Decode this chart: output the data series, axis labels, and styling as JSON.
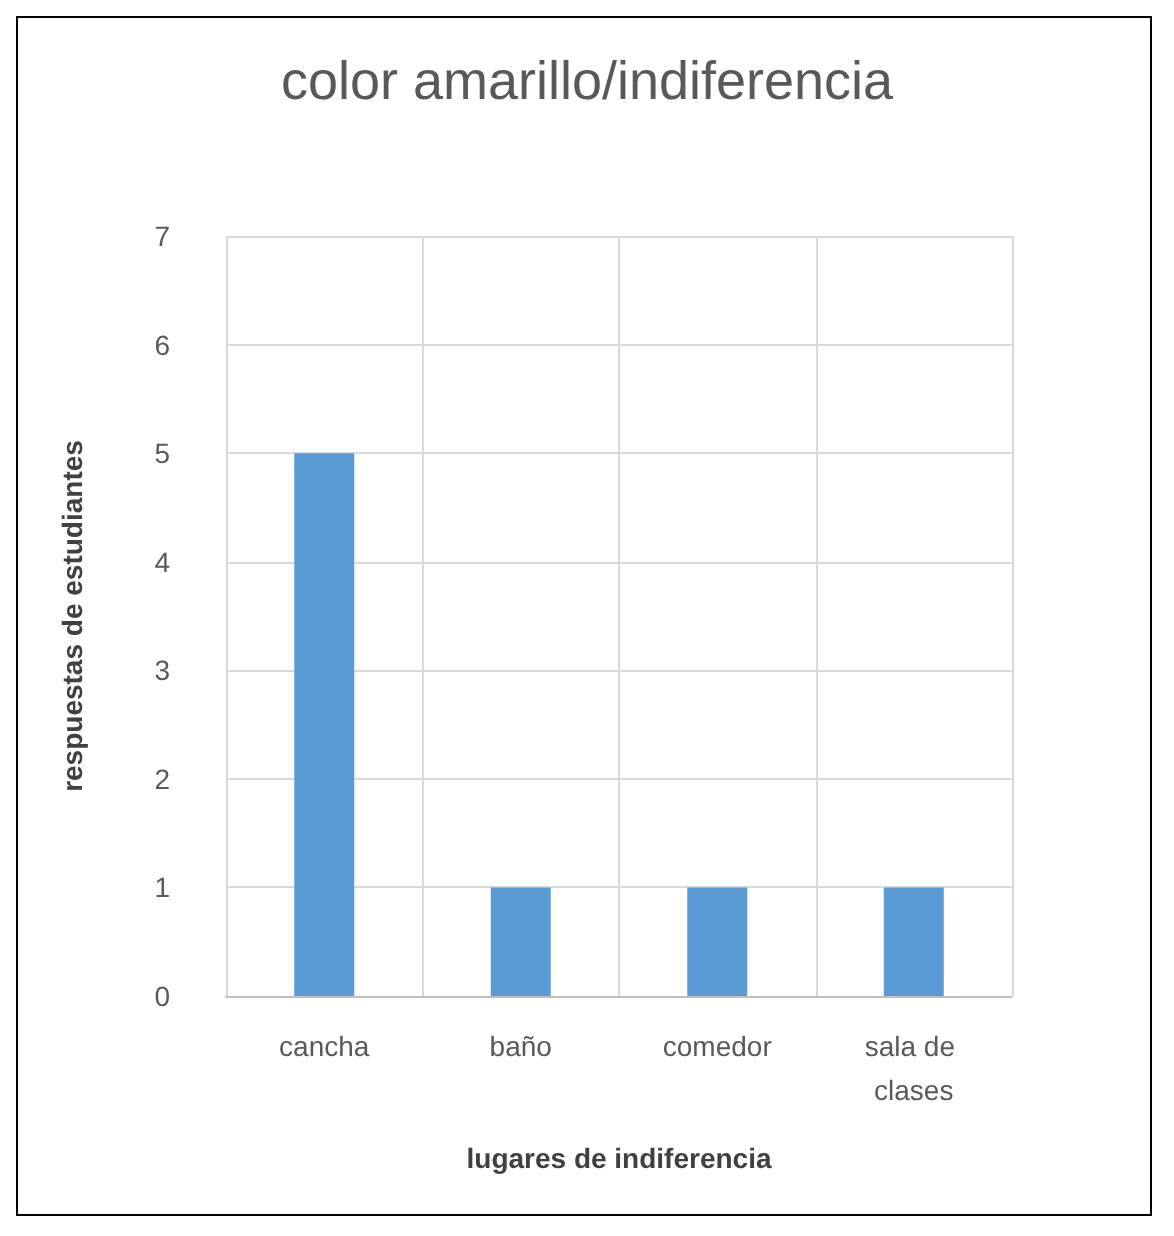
{
  "chart_data": {
    "type": "bar",
    "title": "color amarillo/indiferencia",
    "xlabel": "lugares de indiferencia",
    "ylabel": "respuestas de estudiantes",
    "categories": [
      "cancha",
      "baño",
      "comedor",
      "sala de clases"
    ],
    "values": [
      5,
      1,
      1,
      1
    ],
    "color": "#5b9bd5",
    "ylim": [
      0,
      7
    ],
    "yticks": [
      0,
      1,
      2,
      3,
      4,
      5,
      6,
      7
    ],
    "grid": true
  }
}
